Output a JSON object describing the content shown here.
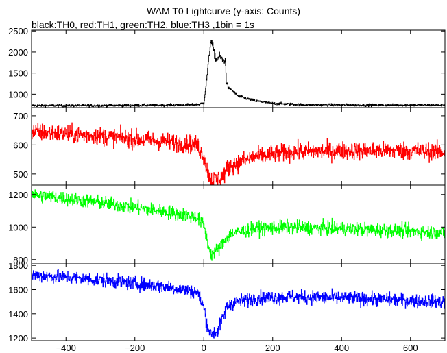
{
  "chart_data": {
    "type": "line",
    "title": "WAM T0 Lightcurve (y-axis: Counts)",
    "subtitle": "black:TH0, red:TH1, green:TH2, blue:TH3 ,1bin = 1s",
    "xlabel": "",
    "ylabel": "",
    "xlim": [
      -500,
      700
    ],
    "x_ticks": [
      "−400",
      "−200",
      "0",
      "200",
      "400",
      "600"
    ],
    "x_tick_values": [
      -400,
      -200,
      0,
      200,
      400,
      600
    ],
    "grid": false,
    "panels": [
      {
        "name": "TH0",
        "color": "#000000",
        "ylim": [
          680,
          2520
        ],
        "y_ticks": [
          "1000",
          "1500",
          "2000",
          "2500"
        ],
        "y_tick_values": [
          1000,
          1500,
          2000,
          2500
        ],
        "noise": 22,
        "series_x": [
          -500,
          -300,
          -100,
          -20,
          0,
          10,
          20,
          25,
          35,
          45,
          55,
          62,
          65,
          70,
          80,
          100,
          150,
          200,
          300,
          500,
          700
        ],
        "series_y": [
          730,
          730,
          740,
          750,
          790,
          1500,
          2300,
          2150,
          1800,
          1900,
          1800,
          1800,
          1350,
          1150,
          1100,
          950,
          840,
          780,
          745,
          740,
          740
        ]
      },
      {
        "name": "TH1",
        "color": "#ff0000",
        "ylim": [
          462,
          728
        ],
        "y_ticks": [
          "500",
          "600",
          "700"
        ],
        "y_tick_values": [
          500,
          600,
          700
        ],
        "noise": 22,
        "series_x": [
          -500,
          -300,
          -100,
          -20,
          0,
          10,
          20,
          40,
          60,
          65,
          80,
          150,
          250,
          400,
          600,
          700
        ],
        "series_y": [
          645,
          630,
          610,
          600,
          560,
          510,
          482,
          482,
          500,
          515,
          530,
          560,
          575,
          580,
          580,
          575
        ]
      },
      {
        "name": "TH2",
        "color": "#00ff00",
        "ylim": [
          778,
          1258
        ],
        "y_ticks": [
          "800",
          "1000",
          "1200"
        ],
        "y_tick_values": [
          800,
          1000,
          1200
        ],
        "noise": 30,
        "series_x": [
          -500,
          -300,
          -100,
          -20,
          0,
          10,
          20,
          40,
          60,
          65,
          80,
          150,
          250,
          400,
          600,
          700
        ],
        "series_y": [
          1200,
          1150,
          1090,
          1060,
          1010,
          910,
          830,
          860,
          910,
          935,
          960,
          990,
          1000,
          990,
          975,
          965
        ]
      },
      {
        "name": "TH3",
        "color": "#0000ff",
        "ylim": [
          1178,
          1818
        ],
        "y_ticks": [
          "1200",
          "1400",
          "1600",
          "1800"
        ],
        "y_tick_values": [
          1200,
          1400,
          1600,
          1800
        ],
        "noise": 40,
        "series_x": [
          -500,
          -300,
          -100,
          -20,
          0,
          10,
          20,
          40,
          60,
          65,
          80,
          150,
          250,
          400,
          600,
          700
        ],
        "series_y": [
          1720,
          1680,
          1620,
          1580,
          1450,
          1300,
          1230,
          1260,
          1400,
          1450,
          1490,
          1530,
          1540,
          1530,
          1510,
          1500
        ]
      }
    ]
  }
}
